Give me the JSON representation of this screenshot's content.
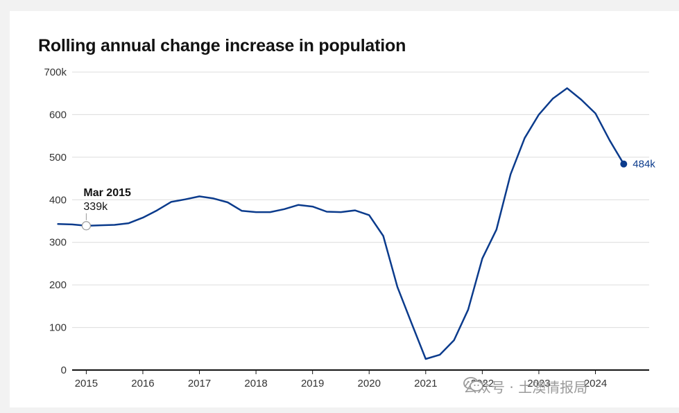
{
  "chart_data": {
    "type": "line",
    "title": "Rolling annual change increase in population",
    "xlabel": "",
    "ylabel": "",
    "ylim": [
      0,
      700
    ],
    "y_ticks": [
      0,
      100,
      200,
      300,
      400,
      500,
      600,
      700
    ],
    "y_tick_labels": [
      "0",
      "100",
      "200",
      "300",
      "400",
      "500",
      "600",
      "700k"
    ],
    "x_ticks": [
      2015,
      2016,
      2017,
      2018,
      2019,
      2020,
      2021,
      2022,
      2023,
      2024
    ],
    "x_tick_labels": [
      "2015",
      "2016",
      "2017",
      "2018",
      "2019",
      "2020",
      "2021",
      "2022",
      "2023",
      "2024"
    ],
    "xlim": [
      2014.75,
      2024.95
    ],
    "grid": true,
    "series": [
      {
        "name": "Rolling annual change in population",
        "color": "#0b3b8c",
        "points": [
          [
            2014.5,
            343
          ],
          [
            2014.75,
            342
          ],
          [
            2015.0,
            339
          ],
          [
            2015.25,
            340
          ],
          [
            2015.5,
            341
          ],
          [
            2015.75,
            345
          ],
          [
            2016.0,
            358
          ],
          [
            2016.25,
            375
          ],
          [
            2016.5,
            395
          ],
          [
            2016.75,
            401
          ],
          [
            2017.0,
            408
          ],
          [
            2017.25,
            403
          ],
          [
            2017.5,
            394
          ],
          [
            2017.75,
            374
          ],
          [
            2018.0,
            371
          ],
          [
            2018.25,
            371
          ],
          [
            2018.5,
            378
          ],
          [
            2018.75,
            388
          ],
          [
            2019.0,
            384
          ],
          [
            2019.25,
            372
          ],
          [
            2019.5,
            371
          ],
          [
            2019.75,
            375
          ],
          [
            2020.0,
            364
          ],
          [
            2020.25,
            315
          ],
          [
            2020.5,
            195
          ],
          [
            2020.75,
            110
          ],
          [
            2021.0,
            26
          ],
          [
            2021.25,
            36
          ],
          [
            2021.5,
            70
          ],
          [
            2021.75,
            142
          ],
          [
            2022.0,
            262
          ],
          [
            2022.25,
            330
          ],
          [
            2022.5,
            460
          ],
          [
            2022.75,
            545
          ],
          [
            2023.0,
            600
          ],
          [
            2023.25,
            638
          ],
          [
            2023.5,
            662
          ],
          [
            2023.75,
            635
          ],
          [
            2024.0,
            603
          ],
          [
            2024.25,
            540
          ],
          [
            2024.5,
            484
          ]
        ]
      }
    ],
    "annotations": [
      {
        "x": 2015.0,
        "y": 339,
        "title": "Mar 2015",
        "value": "339k"
      }
    ],
    "end_point": {
      "x": 2024.5,
      "y": 484,
      "label": "484k"
    }
  },
  "watermark": {
    "text": "公众号 · 土澳情报局",
    "icon": "wechat-icon"
  }
}
